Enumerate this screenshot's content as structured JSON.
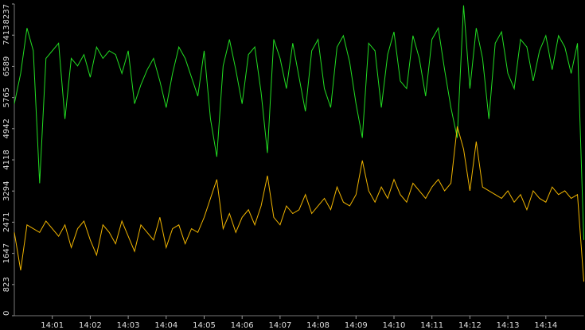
{
  "chart_data": {
    "type": "line",
    "categories": [
      null,
      null,
      null,
      null,
      null,
      null,
      "14:01",
      null,
      null,
      null,
      null,
      null,
      "14:02",
      null,
      null,
      null,
      null,
      null,
      "14:03",
      null,
      null,
      null,
      null,
      null,
      "14:04",
      null,
      null,
      null,
      null,
      null,
      "14:05",
      null,
      null,
      null,
      null,
      null,
      "14:06",
      null,
      null,
      null,
      null,
      null,
      "14:07",
      null,
      null,
      null,
      null,
      null,
      "14:08",
      null,
      null,
      null,
      null,
      null,
      "14:09",
      null,
      null,
      null,
      null,
      null,
      "14:10",
      null,
      null,
      null,
      null,
      null,
      "14:11",
      null,
      null,
      null,
      null,
      null,
      "14:12",
      null,
      null,
      null,
      null,
      null,
      "14:13",
      null,
      null,
      null,
      null,
      null,
      "14:14",
      null,
      null,
      null,
      null,
      null,
      null
    ],
    "series": [
      {
        "color": "#22dd22",
        "values": [
          5600,
          6400,
          7600,
          7000,
          3500,
          6800,
          7000,
          7200,
          5200,
          6800,
          6600,
          6900,
          6300,
          7100,
          6800,
          7000,
          6900,
          6400,
          7000,
          5600,
          6100,
          6500,
          6800,
          6200,
          5500,
          6400,
          7100,
          6800,
          6300,
          5800,
          7000,
          5200,
          4200,
          6600,
          7300,
          6500,
          5600,
          6900,
          7100,
          5900,
          4300,
          7300,
          6800,
          6000,
          7200,
          6300,
          5400,
          7000,
          7300,
          6000,
          5500,
          7100,
          7400,
          6700,
          5600,
          4700,
          7200,
          7000,
          5500,
          6900,
          7500,
          6200,
          6000,
          7400,
          6800,
          5800,
          7300,
          7600,
          6500,
          5500,
          4700,
          8200,
          6000,
          7600,
          6800,
          5200,
          7200,
          7500,
          6400,
          6000,
          7300,
          7100,
          6200,
          7000,
          7400,
          6500,
          7400,
          7100,
          6400,
          7200,
          2000
        ]
      },
      {
        "color": "#f0b400",
        "values": [
          2200,
          1200,
          2400,
          2300,
          2200,
          2500,
          2300,
          2100,
          2400,
          1800,
          2300,
          2500,
          2000,
          1600,
          2400,
          2200,
          1900,
          2500,
          2100,
          1700,
          2400,
          2200,
          2000,
          2600,
          1800,
          2300,
          2400,
          1900,
          2300,
          2200,
          2600,
          3100,
          3600,
          2300,
          2700,
          2200,
          2600,
          2800,
          2400,
          2900,
          3700,
          2600,
          2400,
          2900,
          2700,
          2800,
          3200,
          2700,
          2900,
          3100,
          2800,
          3400,
          3000,
          2900,
          3200,
          4100,
          3300,
          3000,
          3400,
          3100,
          3600,
          3200,
          3000,
          3500,
          3300,
          3100,
          3400,
          3600,
          3300,
          3500,
          5000,
          4400,
          3300,
          4600,
          3400,
          3300,
          3200,
          3100,
          3300,
          3000,
          3200,
          2800,
          3300,
          3100,
          3000,
          3400,
          3200,
          3300,
          3100,
          3200,
          900
        ]
      }
    ],
    "ylim": [
      0,
      8237
    ],
    "yticks": [
      0,
      823,
      1647,
      2471,
      3294,
      4118,
      4942,
      5765,
      6589,
      7413,
      8237
    ]
  }
}
